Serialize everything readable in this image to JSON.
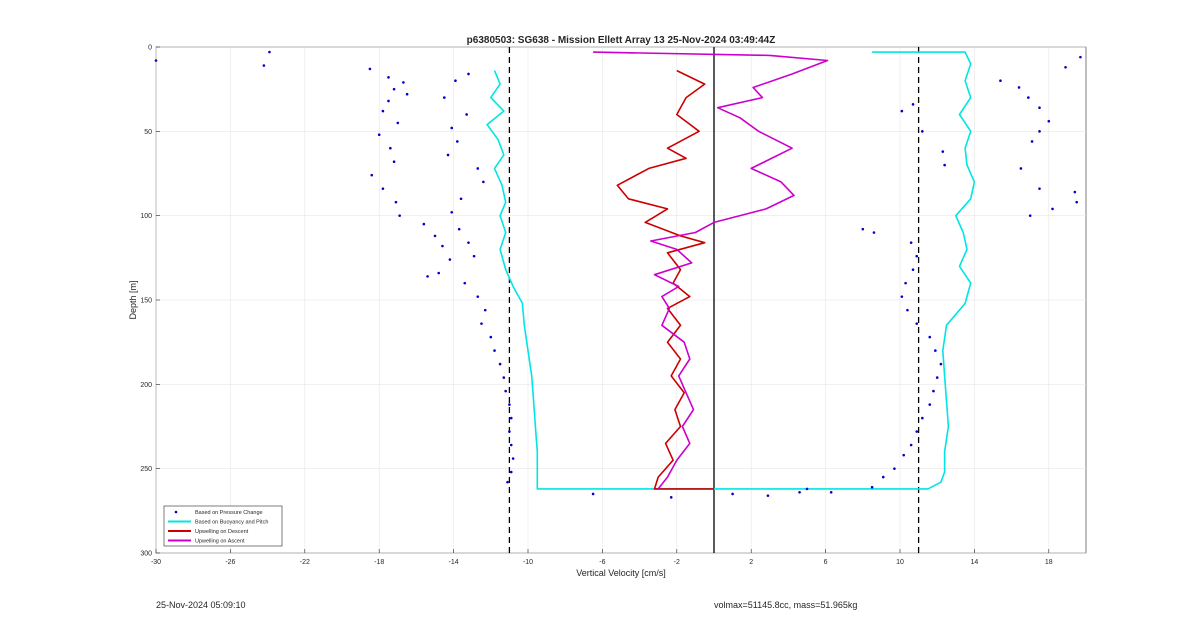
{
  "chart_data": {
    "type": "line",
    "title": "p6380503: SG638 - Mission Ellett Array 13 25-Nov-2024 03:49:44Z",
    "xlabel": "Vertical Velocity [cm/s]",
    "ylabel": "Depth [m]",
    "xlim": [
      -30,
      20
    ],
    "ylim": [
      300,
      0
    ],
    "y_reversed": true,
    "grid": true,
    "x_ticks": [
      -30,
      -26,
      -22,
      -18,
      -14,
      -10,
      -6,
      -2,
      2,
      6,
      10,
      14,
      18
    ],
    "y_ticks": [
      0,
      50,
      100,
      150,
      200,
      250,
      300
    ],
    "legend_position": "bottom-left",
    "legend": [
      "Based on Pressure Change",
      "Based on Buoyancy and Pitch",
      "Upwelling on Descent",
      "Upwelling on Ascent"
    ],
    "colors": {
      "pressure": "#0000cc",
      "buoyancy": "#00e5e5",
      "descent": "#cc0000",
      "ascent": "#cc00cc",
      "reference": "#000000"
    },
    "reference_lines": {
      "solid_x": 0,
      "dashed_x": [
        -11,
        11
      ]
    },
    "series": [
      {
        "name": "Based on Buoyancy and Pitch",
        "points": [
          [
            -11.8,
            14
          ],
          [
            -11.5,
            22
          ],
          [
            -12,
            30
          ],
          [
            -11.3,
            38
          ],
          [
            -12.2,
            46
          ],
          [
            -11.6,
            55
          ],
          [
            -11.3,
            64
          ],
          [
            -11.8,
            72
          ],
          [
            -11.4,
            82
          ],
          [
            -11.2,
            92
          ],
          [
            -11.5,
            100
          ],
          [
            -11.2,
            110
          ],
          [
            -11.5,
            120
          ],
          [
            -11.2,
            132
          ],
          [
            -10.8,
            142
          ],
          [
            -10.3,
            152
          ],
          [
            -10.2,
            165
          ],
          [
            -10,
            180
          ],
          [
            -9.8,
            195
          ],
          [
            -9.7,
            210
          ],
          [
            -9.6,
            225
          ],
          [
            -9.5,
            240
          ],
          [
            -9.5,
            258
          ],
          [
            -9.5,
            262
          ],
          [
            11.5,
            262
          ],
          [
            12.2,
            258
          ],
          [
            12.4,
            252
          ],
          [
            12.4,
            240
          ],
          [
            12.6,
            225
          ],
          [
            12.5,
            210
          ],
          [
            12.4,
            195
          ],
          [
            12.3,
            180
          ],
          [
            12.5,
            165
          ],
          [
            13.5,
            152
          ],
          [
            13.8,
            140
          ],
          [
            13.2,
            130
          ],
          [
            13.6,
            120
          ],
          [
            13.4,
            110
          ],
          [
            13,
            100
          ],
          [
            13.8,
            90
          ],
          [
            14,
            80
          ],
          [
            13.6,
            70
          ],
          [
            13.5,
            60
          ],
          [
            13.8,
            50
          ],
          [
            13.2,
            40
          ],
          [
            13.8,
            30
          ],
          [
            13.5,
            20
          ],
          [
            13.8,
            10
          ],
          [
            13.5,
            3
          ],
          [
            8.5,
            3
          ]
        ]
      },
      {
        "name": "Upwelling on Descent",
        "points": [
          [
            -2,
            14
          ],
          [
            -0.5,
            22
          ],
          [
            -1.5,
            30
          ],
          [
            -2,
            40
          ],
          [
            -0.8,
            50
          ],
          [
            -2.5,
            60
          ],
          [
            -1.5,
            66
          ],
          [
            -3.5,
            72
          ],
          [
            -5.2,
            82
          ],
          [
            -4.6,
            90
          ],
          [
            -2.5,
            96
          ],
          [
            -3.7,
            104
          ],
          [
            -1.8,
            112
          ],
          [
            -0.5,
            116
          ],
          [
            -2.5,
            122
          ],
          [
            -1.8,
            132
          ],
          [
            -2.2,
            140
          ],
          [
            -1.3,
            148
          ],
          [
            -2.5,
            155
          ],
          [
            -1.8,
            165
          ],
          [
            -2.5,
            175
          ],
          [
            -1.8,
            185
          ],
          [
            -2.3,
            195
          ],
          [
            -1.6,
            205
          ],
          [
            -2.1,
            215
          ],
          [
            -1.8,
            225
          ],
          [
            -2.6,
            235
          ],
          [
            -2.2,
            245
          ],
          [
            -3,
            255
          ],
          [
            -3.2,
            262
          ],
          [
            0,
            262
          ]
        ]
      },
      {
        "name": "Upwelling on Ascent",
        "points": [
          [
            -3,
            262
          ],
          [
            -2.5,
            255
          ],
          [
            -2,
            245
          ],
          [
            -1.3,
            235
          ],
          [
            -1.7,
            225
          ],
          [
            -1.1,
            215
          ],
          [
            -1.5,
            205
          ],
          [
            -1.9,
            195
          ],
          [
            -1.3,
            185
          ],
          [
            -1.6,
            175
          ],
          [
            -2.8,
            165
          ],
          [
            -2.4,
            155
          ],
          [
            -2.8,
            148
          ],
          [
            -1.9,
            142
          ],
          [
            -3.2,
            135
          ],
          [
            -1.2,
            128
          ],
          [
            -2,
            120
          ],
          [
            -3.4,
            115
          ],
          [
            -1,
            110
          ],
          [
            0,
            104
          ],
          [
            2.8,
            96
          ],
          [
            4.3,
            88
          ],
          [
            3.6,
            80
          ],
          [
            2,
            72
          ],
          [
            4.2,
            60
          ],
          [
            2.4,
            50
          ],
          [
            1.4,
            42
          ],
          [
            0.2,
            36
          ],
          [
            2.6,
            30
          ],
          [
            2.1,
            24
          ],
          [
            4.2,
            16
          ],
          [
            6.1,
            8
          ],
          [
            3,
            5
          ],
          [
            -6.5,
            3
          ]
        ]
      },
      {
        "name": "Based on Pressure Change",
        "points": [
          [
            -30,
            8
          ],
          [
            -24.2,
            11
          ],
          [
            -23.9,
            3
          ],
          [
            -18.5,
            13
          ],
          [
            -17.5,
            18
          ],
          [
            -16.7,
            21
          ],
          [
            -17.2,
            25
          ],
          [
            -16.5,
            28
          ],
          [
            -17.5,
            32
          ],
          [
            -17.8,
            38
          ],
          [
            -17,
            45
          ],
          [
            -18,
            52
          ],
          [
            -17.4,
            60
          ],
          [
            -17.2,
            68
          ],
          [
            -18.4,
            76
          ],
          [
            -17.8,
            84
          ],
          [
            -17.1,
            92
          ],
          [
            -16.9,
            100
          ],
          [
            -15.6,
            105
          ],
          [
            -15,
            112
          ],
          [
            -14.6,
            118
          ],
          [
            -14.2,
            126
          ],
          [
            -14.8,
            134
          ],
          [
            -15.4,
            136
          ],
          [
            -13.9,
            20
          ],
          [
            -13.2,
            16
          ],
          [
            -14.5,
            30
          ],
          [
            -13.3,
            40
          ],
          [
            -14.1,
            48
          ],
          [
            -13.8,
            56
          ],
          [
            -14.3,
            64
          ],
          [
            -12.7,
            72
          ],
          [
            -12.4,
            80
          ],
          [
            -13.6,
            90
          ],
          [
            -14.1,
            98
          ],
          [
            -13.7,
            108
          ],
          [
            -13.2,
            116
          ],
          [
            -12.9,
            124
          ],
          [
            -13.4,
            140
          ],
          [
            -12.7,
            148
          ],
          [
            -12.3,
            156
          ],
          [
            -12.5,
            164
          ],
          [
            -12,
            172
          ],
          [
            -11.8,
            180
          ],
          [
            -11.5,
            188
          ],
          [
            -11.3,
            196
          ],
          [
            -11.2,
            204
          ],
          [
            -11,
            212
          ],
          [
            -10.9,
            220
          ],
          [
            -11,
            228
          ],
          [
            -10.9,
            236
          ],
          [
            -10.8,
            244
          ],
          [
            -10.9,
            252
          ],
          [
            -11.1,
            258
          ],
          [
            -6.5,
            265
          ],
          [
            -2.3,
            267
          ],
          [
            1,
            265
          ],
          [
            2.9,
            266
          ],
          [
            4.6,
            264
          ],
          [
            5,
            262
          ],
          [
            6.3,
            264
          ],
          [
            8.5,
            261
          ],
          [
            9.1,
            255
          ],
          [
            9.7,
            250
          ],
          [
            10.2,
            242
          ],
          [
            10.6,
            236
          ],
          [
            10.9,
            228
          ],
          [
            11.2,
            220
          ],
          [
            11.6,
            212
          ],
          [
            11.8,
            204
          ],
          [
            12,
            196
          ],
          [
            12.2,
            188
          ],
          [
            11.9,
            180
          ],
          [
            11.6,
            172
          ],
          [
            10.9,
            164
          ],
          [
            10.4,
            156
          ],
          [
            10.1,
            148
          ],
          [
            10.3,
            140
          ],
          [
            10.7,
            132
          ],
          [
            10.9,
            124
          ],
          [
            10.6,
            116
          ],
          [
            8,
            108
          ],
          [
            8.6,
            110
          ],
          [
            10.7,
            34
          ],
          [
            10.1,
            38
          ],
          [
            11.2,
            50
          ],
          [
            12.3,
            62
          ],
          [
            12.4,
            70
          ],
          [
            15.4,
            20
          ],
          [
            16.4,
            24
          ],
          [
            16.9,
            30
          ],
          [
            17.5,
            36
          ],
          [
            18,
            44
          ],
          [
            17.1,
            56
          ],
          [
            16.5,
            72
          ],
          [
            17.5,
            84
          ],
          [
            18.2,
            96
          ],
          [
            17,
            100
          ],
          [
            19.4,
            86
          ],
          [
            19.5,
            92
          ],
          [
            18.9,
            12
          ],
          [
            19.7,
            6
          ],
          [
            17.5,
            50
          ]
        ]
      }
    ]
  },
  "footer": {
    "timestamp": "25-Nov-2024 05:09:10",
    "summary": "volmax=51145.8cc, mass=51.965kg"
  }
}
